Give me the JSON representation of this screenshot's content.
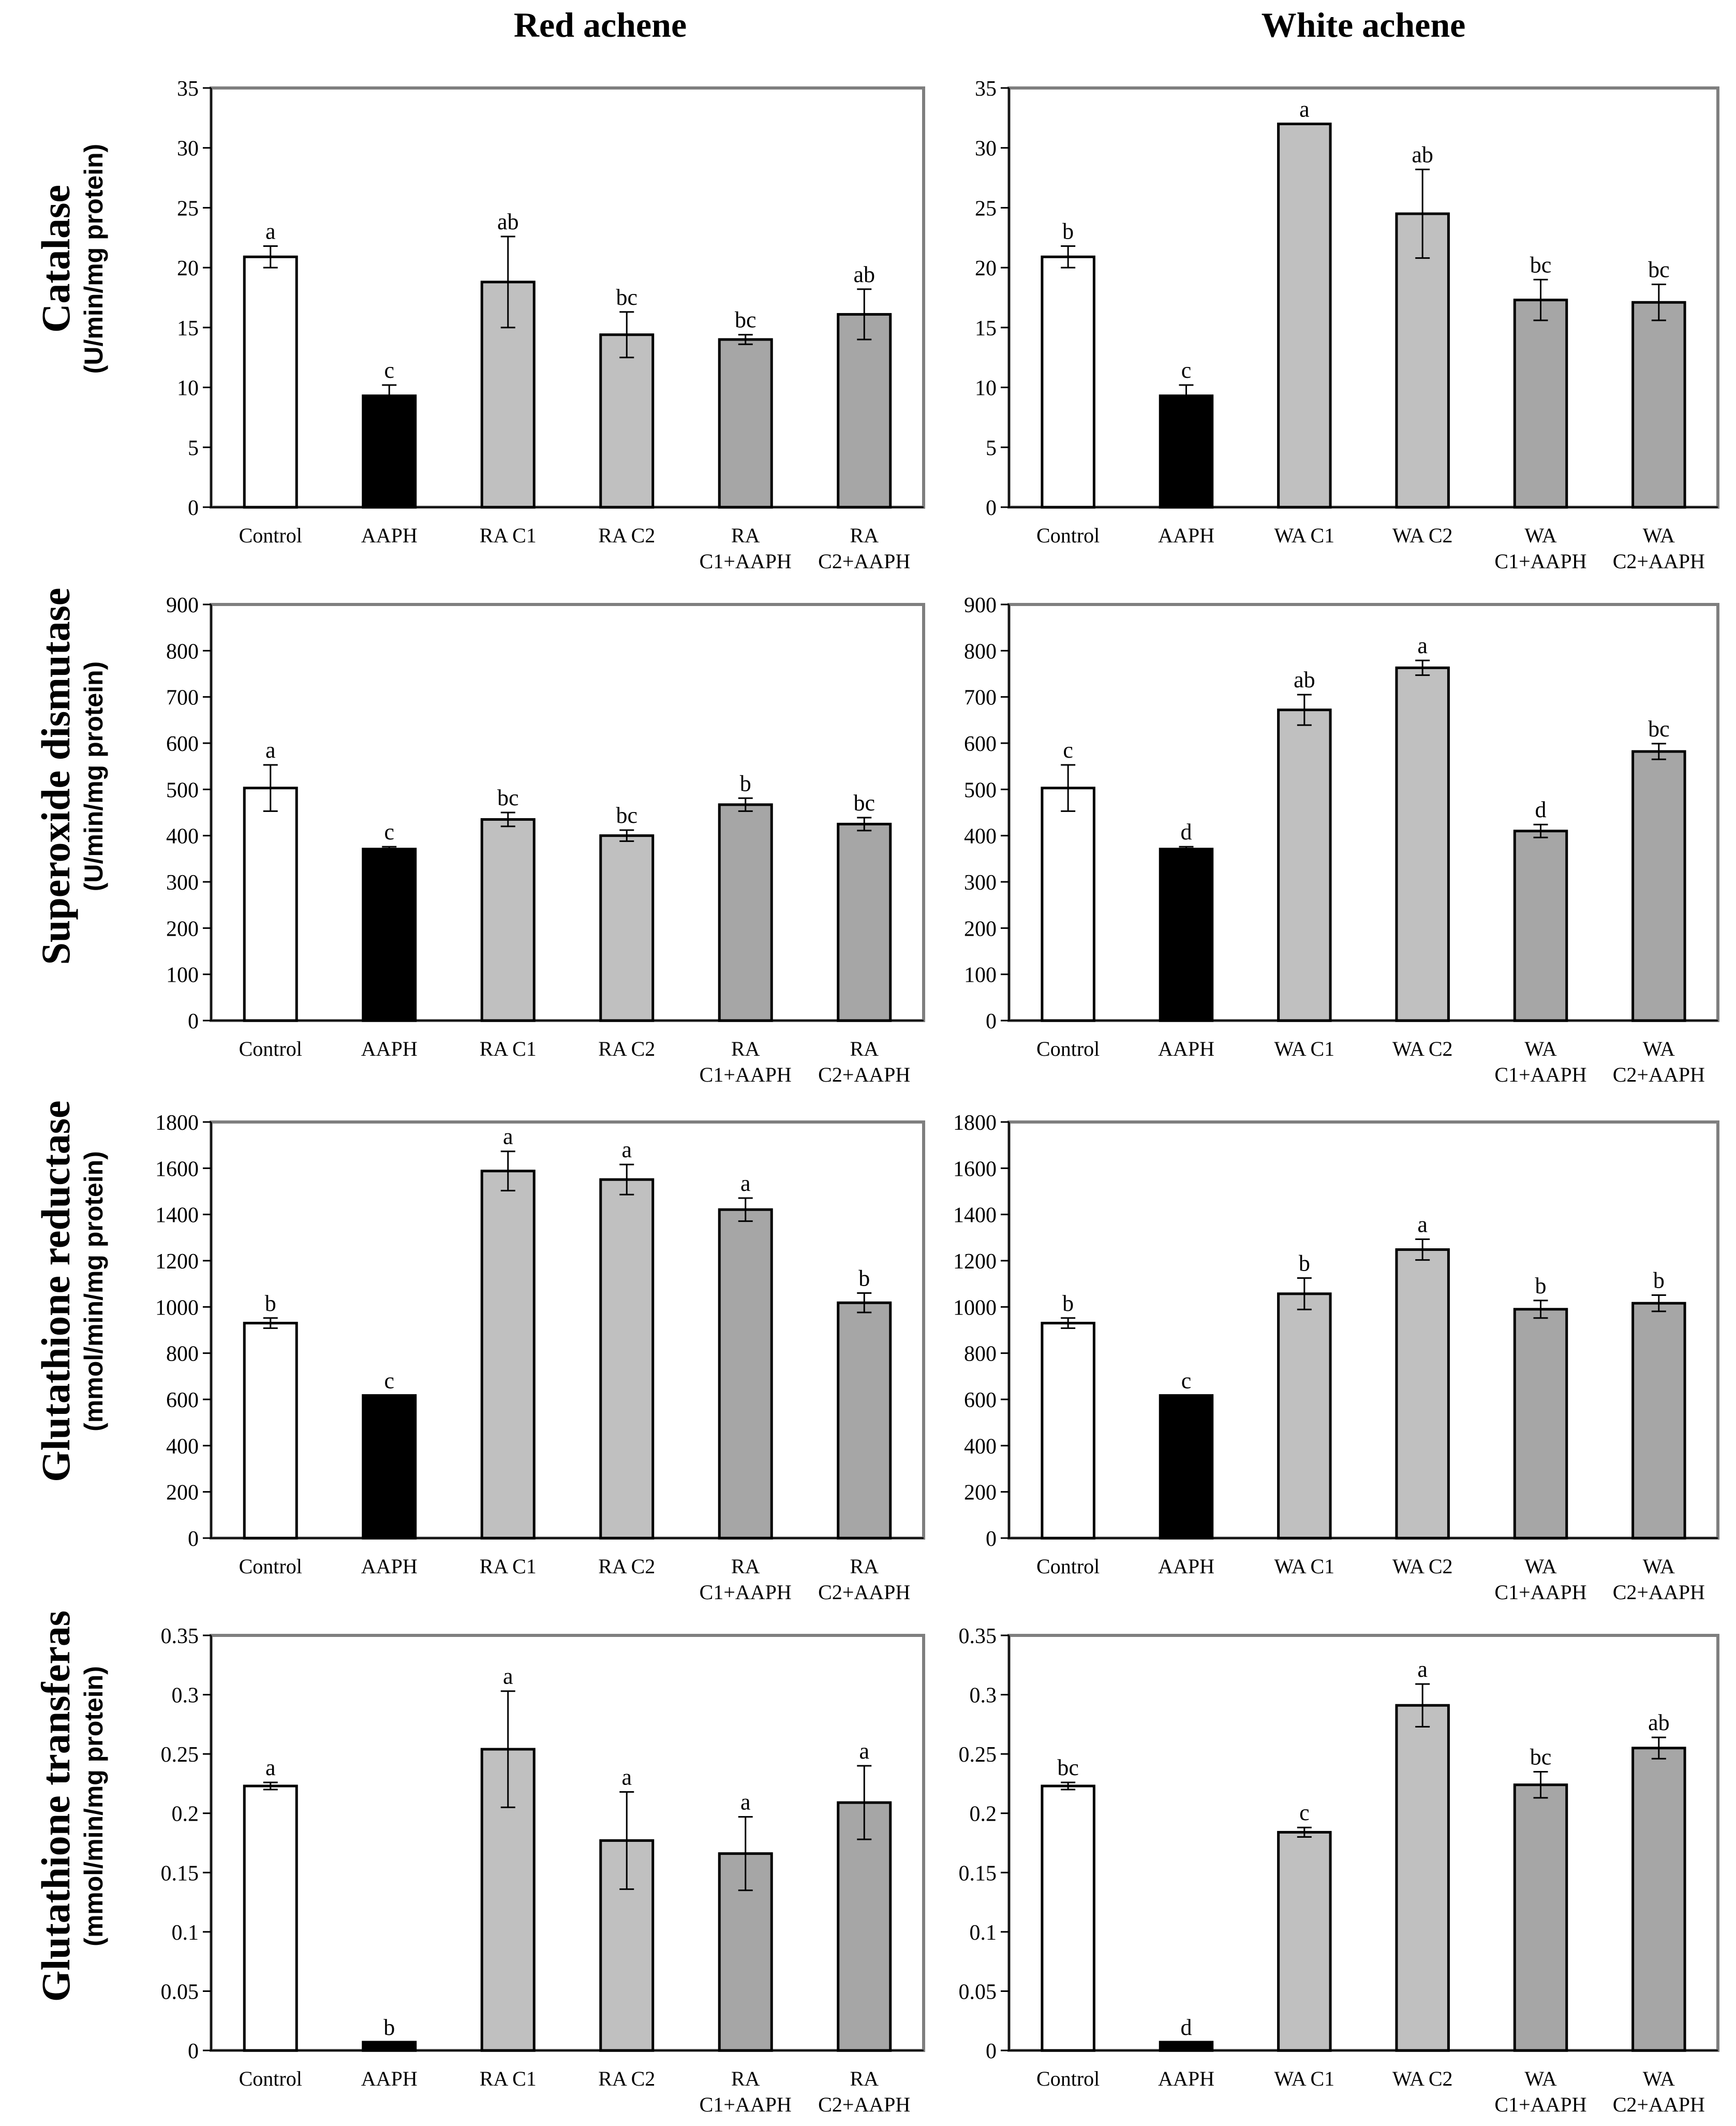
{
  "column_titles": [
    "Red achene",
    "White achene"
  ],
  "row_labels": [
    {
      "title": "Catalase",
      "unit": "(U/min/mg protein)"
    },
    {
      "title": "Superoxide dismutase",
      "unit": "(U/min/mg protein)"
    },
    {
      "title": "Glutathione reductase",
      "unit": "(mmol/min/mg protein)"
    },
    {
      "title": "Glutathione transferas",
      "unit": "(mmol/min/mg protein)"
    }
  ],
  "colors": {
    "control": "#ffffff",
    "aaph": "#000000",
    "treatment": "#c0c0c0",
    "treatment_aaph": "#a6a6a6",
    "frame": "#7f7f7f"
  },
  "chart_data": [
    {
      "type": "bar",
      "title": "Catalase - Red achene",
      "ylabel": "Catalase (U/min/mg protein)",
      "ylim": [
        0,
        35
      ],
      "yticks": [
        "0",
        "5",
        "10",
        "15",
        "20",
        "25",
        "30",
        "35"
      ],
      "categories": [
        [
          "Control"
        ],
        [
          "AAPH"
        ],
        [
          "RA C1"
        ],
        [
          "RA C2"
        ],
        [
          "RA",
          "C1+AAPH"
        ],
        [
          "RA",
          "C2+AAPH"
        ]
      ],
      "values": [
        20.9,
        9.3,
        18.8,
        14.4,
        14.0,
        16.1
      ],
      "errors": [
        0.9,
        0.9,
        3.8,
        1.9,
        0.4,
        2.1
      ],
      "letters": [
        "a",
        "c",
        "ab",
        "bc",
        "bc",
        "ab"
      ]
    },
    {
      "type": "bar",
      "title": "Catalase - White achene",
      "ylabel": "Catalase (U/min/mg protein)",
      "ylim": [
        0,
        35
      ],
      "yticks": [
        "0",
        "5",
        "10",
        "15",
        "20",
        "25",
        "30",
        "35"
      ],
      "categories": [
        [
          "Control"
        ],
        [
          "AAPH"
        ],
        [
          "WA C1"
        ],
        [
          "WA C2"
        ],
        [
          "WA",
          "C1+AAPH"
        ],
        [
          "WA",
          "C2+AAPH"
        ]
      ],
      "values": [
        20.9,
        9.3,
        32.0,
        24.5,
        17.3,
        17.1
      ],
      "errors": [
        0.9,
        0.9,
        0.0,
        3.7,
        1.7,
        1.5
      ],
      "letters": [
        "b",
        "c",
        "a",
        "ab",
        "bc",
        "bc"
      ]
    },
    {
      "type": "bar",
      "title": "Superoxide dismutase - Red achene",
      "ylabel": "Superoxide dismutase (U/min/mg protein)",
      "ylim": [
        0,
        900
      ],
      "yticks": [
        "0",
        "100",
        "200",
        "300",
        "400",
        "500",
        "600",
        "700",
        "800",
        "900"
      ],
      "categories": [
        [
          "Control"
        ],
        [
          "AAPH"
        ],
        [
          "RA C1"
        ],
        [
          "RA C2"
        ],
        [
          "RA",
          "C1+AAPH"
        ],
        [
          "RA",
          "C2+AAPH"
        ]
      ],
      "values": [
        503,
        371,
        435,
        400,
        467,
        425
      ],
      "errors": [
        50,
        5,
        15,
        12,
        14,
        14
      ],
      "letters": [
        "a",
        "c",
        "bc",
        "bc",
        "b",
        "bc"
      ]
    },
    {
      "type": "bar",
      "title": "Superoxide dismutase - White achene",
      "ylabel": "Superoxide dismutase (U/min/mg protein)",
      "ylim": [
        0,
        900
      ],
      "yticks": [
        "0",
        "100",
        "200",
        "300",
        "400",
        "500",
        "600",
        "700",
        "800",
        "900"
      ],
      "categories": [
        [
          "Control"
        ],
        [
          "AAPH"
        ],
        [
          "WA C1"
        ],
        [
          "WA C2"
        ],
        [
          "WA",
          "C1+AAPH"
        ],
        [
          "WA",
          "C2+AAPH"
        ]
      ],
      "values": [
        503,
        371,
        672,
        763,
        410,
        582
      ],
      "errors": [
        50,
        5,
        33,
        16,
        14,
        17
      ],
      "letters": [
        "c",
        "d",
        "ab",
        "a",
        "d",
        "bc"
      ]
    },
    {
      "type": "bar",
      "title": "Glutathione reductase - Red achene",
      "ylabel": "Glutathione reductase (mmol/min/mg protein)",
      "ylim": [
        0,
        1800
      ],
      "yticks": [
        "0",
        "200",
        "400",
        "600",
        "800",
        "1000",
        "1200",
        "1400",
        "1600",
        "1800"
      ],
      "categories": [
        [
          "Control"
        ],
        [
          "AAPH"
        ],
        [
          "RA C1"
        ],
        [
          "RA C2"
        ],
        [
          "RA",
          "C1+AAPH"
        ],
        [
          "RA",
          "C2+AAPH"
        ]
      ],
      "values": [
        930,
        617,
        1588,
        1551,
        1421,
        1018
      ],
      "errors": [
        22,
        0,
        85,
        65,
        50,
        42
      ],
      "letters": [
        "b",
        "c",
        "a",
        "a",
        "a",
        "b"
      ]
    },
    {
      "type": "bar",
      "title": "Glutathione reductase - White achene",
      "ylabel": "Glutathione reductase (mmol/min/mg protein)",
      "ylim": [
        0,
        1800
      ],
      "yticks": [
        "0",
        "200",
        "400",
        "600",
        "800",
        "1000",
        "1200",
        "1400",
        "1600",
        "1800"
      ],
      "categories": [
        [
          "Control"
        ],
        [
          "AAPH"
        ],
        [
          "WA C1"
        ],
        [
          "WA C2"
        ],
        [
          "WA",
          "C1+AAPH"
        ],
        [
          "WA",
          "C2+AAPH"
        ]
      ],
      "values": [
        930,
        617,
        1057,
        1248,
        990,
        1016
      ],
      "errors": [
        22,
        0,
        68,
        45,
        38,
        35
      ],
      "letters": [
        "b",
        "c",
        "b",
        "a",
        "b",
        "b"
      ]
    },
    {
      "type": "bar",
      "title": "Glutathione transferas - Red achene",
      "ylabel": "Glutathione transferas (mmol/min/mg protein)",
      "ylim": [
        0,
        0.35
      ],
      "yticks": [
        "0",
        "0.05",
        "0.1",
        "0.15",
        "0.2",
        "0.25",
        "0.3",
        "0.35"
      ],
      "categories": [
        [
          "Control"
        ],
        [
          "AAPH"
        ],
        [
          "RA C1"
        ],
        [
          "RA C2"
        ],
        [
          "RA",
          "C1+AAPH"
        ],
        [
          "RA",
          "C2+AAPH"
        ]
      ],
      "values": [
        0.223,
        0.007,
        0.254,
        0.177,
        0.166,
        0.209
      ],
      "errors": [
        0.003,
        0.0,
        0.049,
        0.041,
        0.031,
        0.031
      ],
      "letters": [
        "a",
        "b",
        "a",
        "a",
        "a",
        "a"
      ]
    },
    {
      "type": "bar",
      "title": "Glutathione transferas - White achene",
      "ylabel": "Glutathione transferas (mmol/min/mg protein)",
      "ylim": [
        0,
        0.35
      ],
      "yticks": [
        "0",
        "0.05",
        "0.1",
        "0.15",
        "0.2",
        "0.25",
        "0.3",
        "0.35"
      ],
      "categories": [
        [
          "Control"
        ],
        [
          "AAPH"
        ],
        [
          "WA C1"
        ],
        [
          "WA C2"
        ],
        [
          "WA",
          "C1+AAPH"
        ],
        [
          "WA",
          "C2+AAPH"
        ]
      ],
      "values": [
        0.223,
        0.007,
        0.184,
        0.291,
        0.224,
        0.255
      ],
      "errors": [
        0.003,
        0.0,
        0.004,
        0.018,
        0.011,
        0.009
      ],
      "letters": [
        "bc",
        "d",
        "c",
        "a",
        "bc",
        "ab"
      ]
    }
  ]
}
